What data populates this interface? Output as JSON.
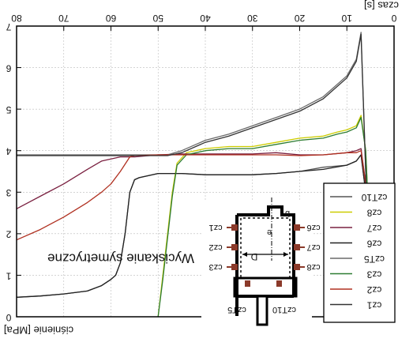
{
  "chart_data": {
    "type": "line",
    "title": "Wyciskanie symetryczne",
    "xlabel": "czas [s]",
    "ylabel": "ciśnienie [MPa]",
    "xlim": [
      0,
      80
    ],
    "ylim": [
      0,
      7
    ],
    "x_ticks": [
      "0",
      "10",
      "20",
      "30",
      "40",
      "50",
      "60",
      "70",
      "80"
    ],
    "y_ticks": [
      "0",
      "1",
      "2",
      "3",
      "4",
      "5",
      "6",
      "7"
    ],
    "grid": true,
    "legend_position": "bottom-right",
    "series": [
      {
        "name": "czT10",
        "color": "#555555",
        "x": [
          0,
          4,
          5,
          6,
          7,
          8,
          10,
          15,
          20,
          25,
          30,
          35,
          40,
          45,
          48,
          50,
          52,
          54,
          55,
          56,
          57,
          58,
          59,
          60,
          62,
          65,
          70,
          75,
          80
        ],
        "y": [
          0,
          0,
          0.8,
          3.0,
          3.9,
          3.75,
          3.65,
          3.6,
          3.5,
          3.45,
          3.42,
          3.42,
          3.42,
          3.45,
          3.45,
          3.45,
          3.4,
          3.35,
          3.3,
          3.0,
          2.0,
          1.3,
          1.0,
          0.9,
          0.75,
          0.62,
          0.55,
          0.5,
          0.47
        ]
      },
      {
        "name": "cz8",
        "color": "#cccc00",
        "x": [
          0,
          4,
          5,
          6,
          7,
          8,
          10,
          12,
          15,
          20,
          25,
          30,
          35,
          40,
          44,
          46,
          47,
          48,
          49,
          50
        ],
        "y": [
          0,
          0,
          1.5,
          4.0,
          4.85,
          4.6,
          4.5,
          4.45,
          4.35,
          4.3,
          4.2,
          4.1,
          4.1,
          4.05,
          3.95,
          3.7,
          3.0,
          2.0,
          1.0,
          0
        ]
      },
      {
        "name": "cz7",
        "color": "#7a2040",
        "x": [
          0,
          4,
          5,
          6,
          7,
          8,
          10,
          15,
          20,
          25,
          30,
          35,
          40,
          45,
          50,
          55,
          56,
          58,
          60,
          62,
          65,
          70,
          75,
          80
        ],
        "y": [
          0,
          0,
          1.0,
          3.2,
          4.05,
          4.0,
          3.95,
          3.9,
          3.9,
          3.95,
          3.92,
          3.92,
          3.92,
          3.92,
          3.9,
          3.85,
          3.85,
          3.85,
          3.8,
          3.75,
          3.55,
          3.2,
          2.9,
          2.6
        ]
      },
      {
        "name": "cz6",
        "color": "#222222",
        "x": [
          0,
          4,
          5,
          6,
          7,
          8,
          10,
          15,
          20,
          25,
          30,
          35,
          40,
          45,
          48,
          50,
          52,
          54,
          55,
          56,
          57,
          58,
          59,
          60,
          62,
          65,
          70,
          75,
          80
        ],
        "y": [
          0,
          0,
          0.8,
          3.0,
          3.9,
          3.75,
          3.65,
          3.55,
          3.5,
          3.45,
          3.42,
          3.42,
          3.42,
          3.45,
          3.45,
          3.45,
          3.4,
          3.35,
          3.3,
          3.0,
          2.0,
          1.3,
          1.0,
          0.9,
          0.75,
          0.62,
          0.55,
          0.5,
          0.47
        ]
      },
      {
        "name": "czT5",
        "color": "#6a6a6a",
        "x": [
          0,
          5,
          6,
          7,
          8,
          10,
          15,
          20,
          25,
          30,
          35,
          40,
          45,
          48,
          50,
          55,
          60,
          65,
          70,
          80
        ],
        "y": [
          0,
          0,
          3.5,
          6.85,
          6.2,
          5.8,
          5.3,
          5.0,
          4.8,
          4.6,
          4.4,
          4.25,
          4.0,
          3.9,
          3.9,
          3.9,
          3.9,
          3.9,
          3.9,
          3.9
        ]
      },
      {
        "name": "cz3",
        "color": "#2e7d32",
        "x": [
          0,
          4,
          5,
          6,
          7,
          8,
          10,
          12,
          15,
          20,
          25,
          30,
          35,
          40,
          44,
          46,
          47,
          48,
          49,
          50
        ],
        "y": [
          0,
          0,
          1.5,
          4.0,
          4.8,
          4.55,
          4.45,
          4.4,
          4.3,
          4.25,
          4.15,
          4.05,
          4.05,
          4.0,
          3.9,
          3.65,
          2.9,
          1.9,
          0.9,
          0
        ]
      },
      {
        "name": "cz2",
        "color": "#b03020",
        "x": [
          0,
          4,
          5,
          6,
          7,
          8,
          10,
          15,
          20,
          25,
          30,
          35,
          40,
          45,
          50,
          55,
          56,
          58,
          60,
          62,
          65,
          70,
          75,
          80
        ],
        "y": [
          0,
          0,
          1.0,
          3.2,
          4.0,
          3.95,
          3.95,
          3.9,
          3.88,
          3.9,
          3.9,
          3.9,
          3.9,
          3.9,
          3.9,
          3.88,
          3.85,
          3.5,
          3.2,
          3.0,
          2.75,
          2.4,
          2.1,
          1.85
        ]
      },
      {
        "name": "cz1",
        "color": "#333333",
        "x": [
          0,
          5,
          6,
          7,
          8,
          10,
          15,
          20,
          25,
          30,
          35,
          40,
          45,
          48,
          50,
          55,
          60,
          65,
          70,
          80
        ],
        "y": [
          0,
          0,
          3.5,
          6.8,
          6.15,
          5.75,
          5.25,
          4.95,
          4.75,
          4.55,
          4.35,
          4.2,
          3.95,
          3.88,
          3.88,
          3.88,
          3.88,
          3.88,
          3.88,
          3.88
        ]
      }
    ]
  },
  "diagram": {
    "labels_left": [
      "cz1",
      "cz2",
      "cz3"
    ],
    "labels_right": [
      "cz6",
      "cz7",
      "cz8"
    ],
    "labels_bottom": [
      "czT5",
      "czT10"
    ],
    "label_e": "e",
    "label_b": "b",
    "label_d": "D"
  }
}
